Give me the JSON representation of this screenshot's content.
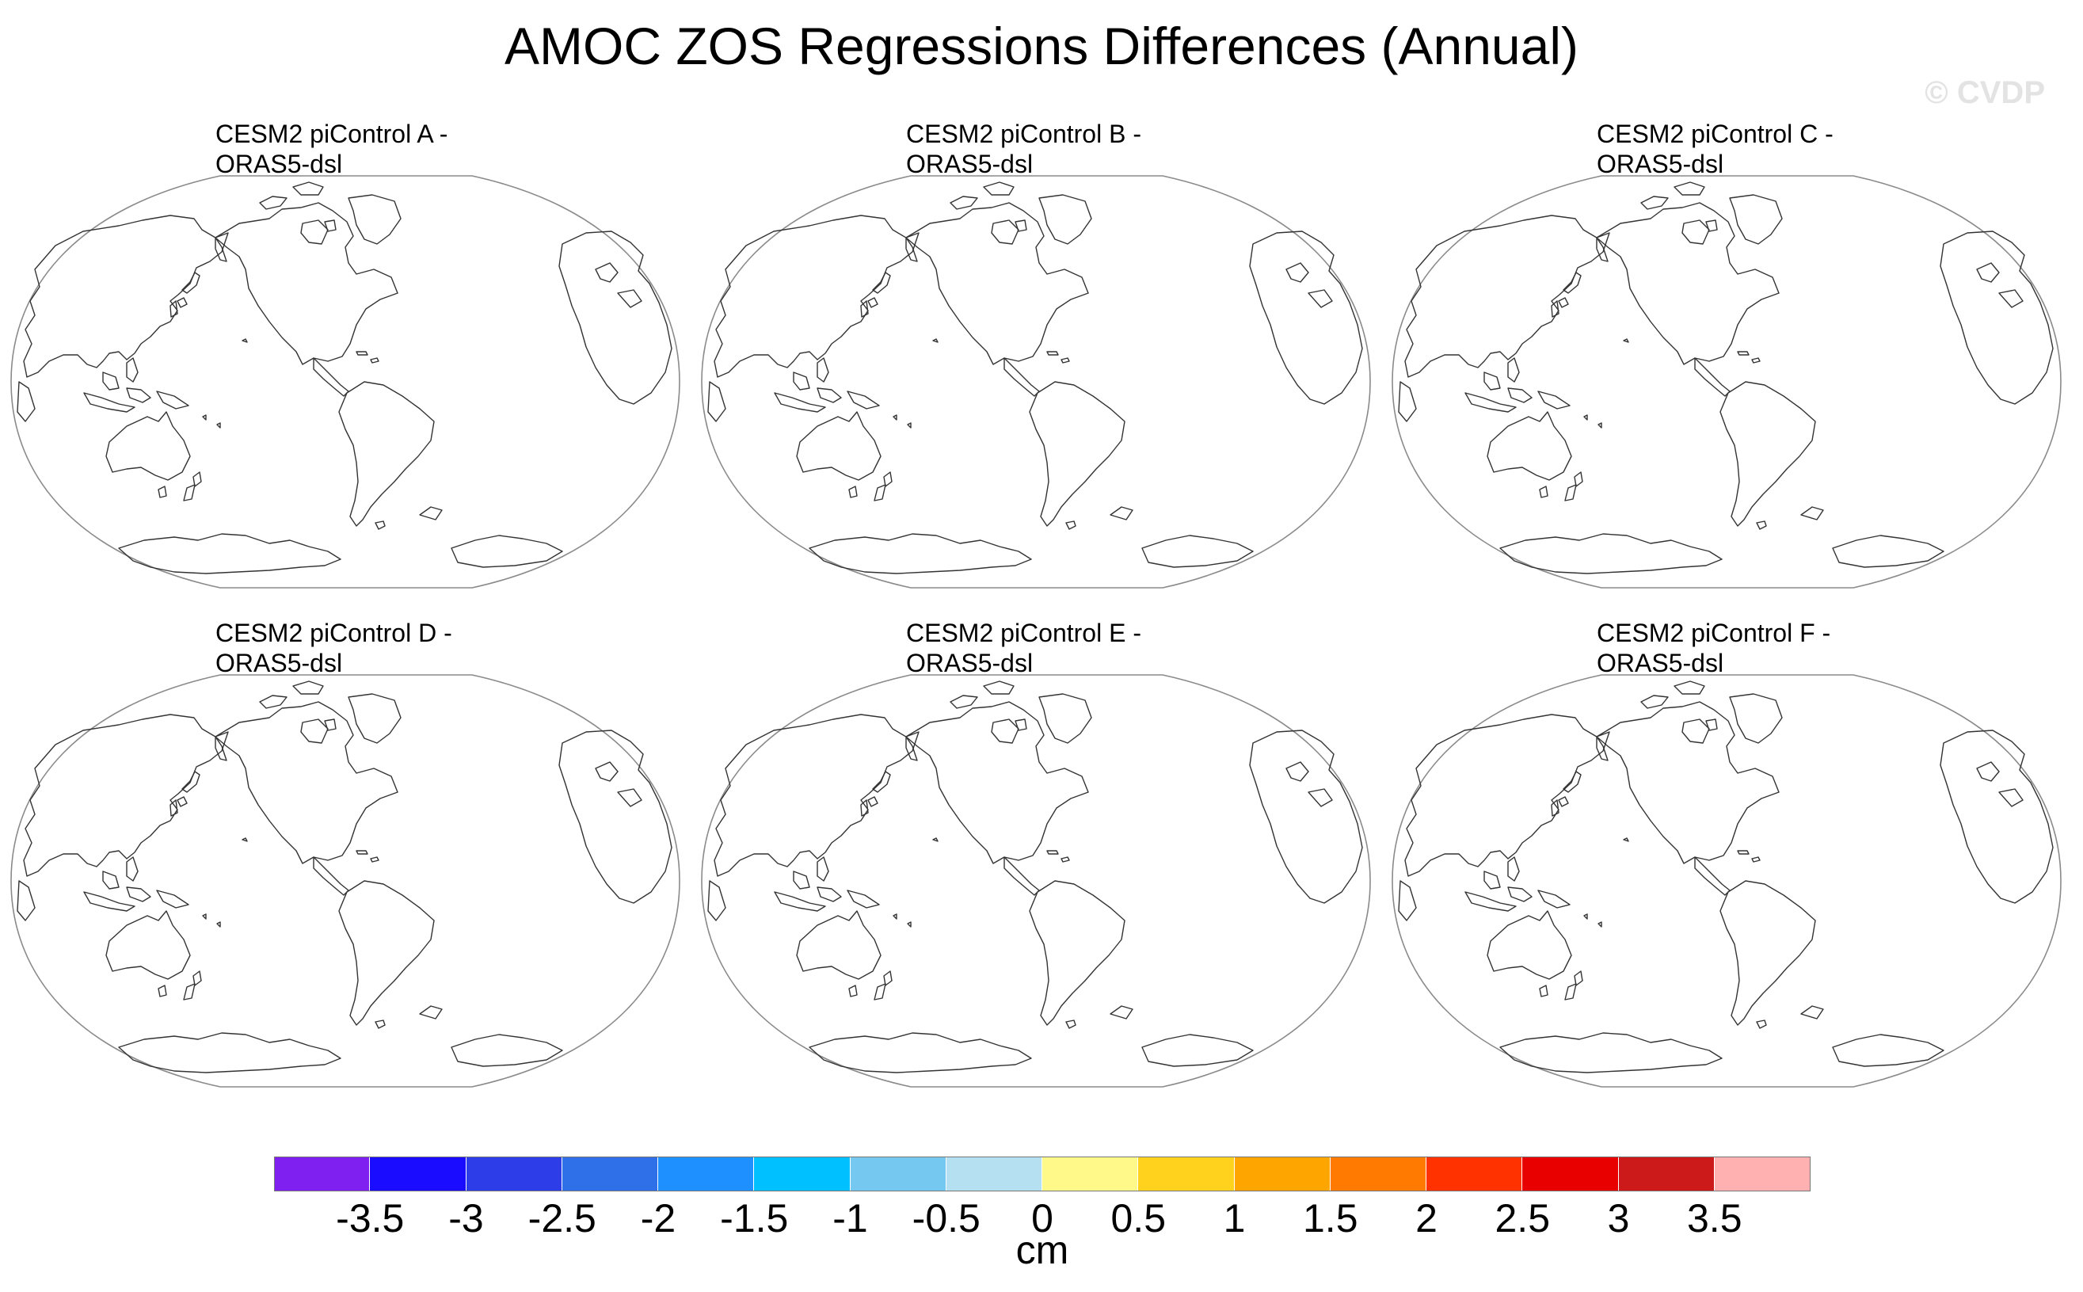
{
  "title": "AMOC ZOS Regressions Differences (Annual)",
  "watermark": "© CVDP",
  "panels": [
    {
      "label": "CESM2 piControl A -\nORAS5-dsl"
    },
    {
      "label": "CESM2 piControl B -\nORAS5-dsl"
    },
    {
      "label": "CESM2 piControl C -\nORAS5-dsl"
    },
    {
      "label": "CESM2 piControl D -\nORAS5-dsl"
    },
    {
      "label": "CESM2 piControl E -\nORAS5-dsl"
    },
    {
      "label": "CESM2 piControl F -\nORAS5-dsl"
    }
  ],
  "colorbar": {
    "colors": [
      "#8020f0",
      "#1a0dff",
      "#2d3ee8",
      "#2f6fe8",
      "#1e90ff",
      "#00c0ff",
      "#75c8f0",
      "#b4e0f2",
      "#fff98a",
      "#ffd21e",
      "#ffa500",
      "#ff7a00",
      "#ff3200",
      "#e80000",
      "#cc1a1a",
      "#ffb0b0"
    ],
    "ticks": [
      "-3.5",
      "-3",
      "-2.5",
      "-2",
      "-1.5",
      "-1",
      "-0.5",
      "0",
      "0.5",
      "1",
      "1.5",
      "2",
      "2.5",
      "3",
      "3.5"
    ],
    "unit": "cm"
  }
}
